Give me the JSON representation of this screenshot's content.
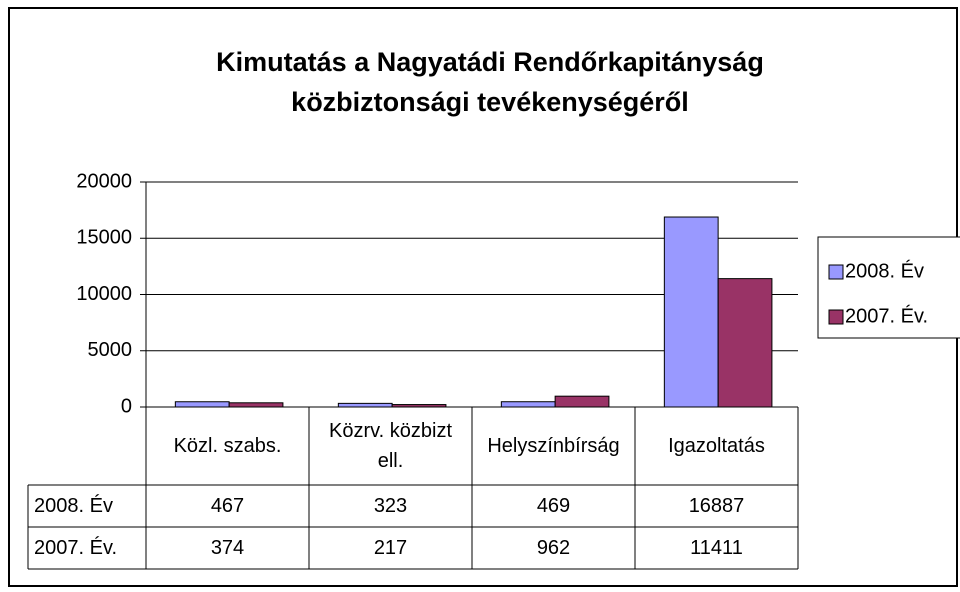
{
  "chart_data": {
    "type": "bar",
    "title": "Kimutatás a Nagyatádi Rendőrkapitányság közbiztonsági tevékenységéről",
    "categories": [
      "Közl. szabs.",
      "Közrv. közbizt ell.",
      "Helyszínbírság",
      "Igazoltatás"
    ],
    "series": [
      {
        "name": "2008. Év",
        "color": "#9999ff",
        "values": [
          467,
          323,
          469,
          16887
        ]
      },
      {
        "name": "2007. Év.",
        "color": "#993366",
        "values": [
          374,
          217,
          962,
          11411
        ]
      }
    ],
    "ylim": [
      0,
      20000
    ],
    "yticks": [
      0,
      5000,
      10000,
      15000,
      20000
    ],
    "grid": true,
    "legend": "right",
    "data_table": true
  }
}
